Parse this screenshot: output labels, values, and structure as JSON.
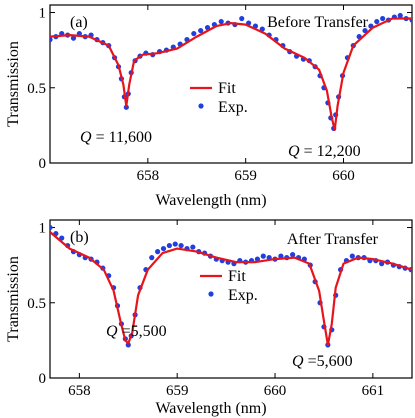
{
  "chart_data": [
    {
      "type": "line",
      "panel_label": "(a)",
      "title": "Before Transfer",
      "xlabel": "Wavelength (nm)",
      "ylabel": "Transmission",
      "xlim": [
        657.0,
        660.7
      ],
      "ylim": [
        0,
        1.05
      ],
      "xticks": [
        658,
        659,
        660
      ],
      "xtick_labels": [
        "658",
        "659",
        "660"
      ],
      "yticks": [
        0,
        0.5,
        1
      ],
      "ytick_labels": [
        "0",
        "0.5",
        "1"
      ],
      "legend": {
        "position": "center",
        "entries": [
          "Fit",
          "Exp."
        ]
      },
      "annotations": [
        {
          "text": "Q = 11,600",
          "prefix": "Q",
          "value": "= 11,600",
          "x": 657.8
        },
        {
          "text": "Q = 12,200",
          "prefix": "Q",
          "value": "= 12,200",
          "x": 659.9
        }
      ],
      "series": [
        {
          "name": "Fit",
          "style": "line",
          "color": "#e8141b",
          "x": [
            657.0,
            657.2,
            657.4,
            657.6,
            657.7,
            657.75,
            657.78,
            657.81,
            657.86,
            657.95,
            658.1,
            658.3,
            658.5,
            658.7,
            658.85,
            659.0,
            659.2,
            659.4,
            659.6,
            659.75,
            659.83,
            659.88,
            659.91,
            659.94,
            660.0,
            660.1,
            660.3,
            660.5,
            660.7
          ],
          "y": [
            0.84,
            0.85,
            0.84,
            0.78,
            0.65,
            0.52,
            0.38,
            0.52,
            0.68,
            0.72,
            0.73,
            0.76,
            0.84,
            0.91,
            0.93,
            0.92,
            0.86,
            0.76,
            0.7,
            0.62,
            0.48,
            0.3,
            0.22,
            0.38,
            0.6,
            0.78,
            0.9,
            0.96,
            0.96
          ]
        },
        {
          "name": "Exp.",
          "style": "scatter",
          "color": "#1f3fe0",
          "x": [
            657.0,
            657.06,
            657.12,
            657.18,
            657.24,
            657.3,
            657.36,
            657.42,
            657.48,
            657.54,
            657.6,
            657.66,
            657.7,
            657.73,
            657.76,
            657.78,
            657.8,
            657.83,
            657.87,
            657.92,
            657.98,
            658.05,
            658.12,
            658.19,
            658.26,
            658.33,
            658.4,
            658.47,
            658.54,
            658.61,
            658.68,
            658.75,
            658.82,
            658.89,
            658.96,
            659.03,
            659.1,
            659.17,
            659.24,
            659.31,
            659.38,
            659.45,
            659.52,
            659.59,
            659.65,
            659.71,
            659.76,
            659.8,
            659.84,
            659.87,
            659.9,
            659.92,
            659.95,
            659.99,
            660.04,
            660.1,
            660.16,
            660.22,
            660.28,
            660.34,
            660.4,
            660.46,
            660.52,
            660.58,
            660.64,
            660.7
          ],
          "y": [
            0.82,
            0.84,
            0.86,
            0.85,
            0.83,
            0.86,
            0.84,
            0.85,
            0.82,
            0.8,
            0.78,
            0.7,
            0.64,
            0.56,
            0.44,
            0.37,
            0.46,
            0.6,
            0.68,
            0.71,
            0.73,
            0.72,
            0.74,
            0.75,
            0.77,
            0.79,
            0.82,
            0.86,
            0.88,
            0.9,
            0.92,
            0.94,
            0.93,
            0.92,
            0.96,
            0.93,
            0.91,
            0.89,
            0.85,
            0.82,
            0.78,
            0.74,
            0.71,
            0.69,
            0.68,
            0.64,
            0.58,
            0.5,
            0.4,
            0.3,
            0.23,
            0.32,
            0.44,
            0.58,
            0.7,
            0.78,
            0.84,
            0.88,
            0.91,
            0.94,
            0.96,
            0.95,
            0.97,
            0.98,
            0.96,
            0.95
          ]
        }
      ]
    },
    {
      "type": "line",
      "panel_label": "(b)",
      "title": "After Transfer",
      "xlabel": "Wavelength (nm)",
      "ylabel": "Transmission",
      "xlim": [
        657.7,
        661.4
      ],
      "ylim": [
        0,
        1.05
      ],
      "xticks": [
        658,
        659,
        660,
        661
      ],
      "xtick_labels": [
        "658",
        "659",
        "660",
        "661"
      ],
      "yticks": [
        0,
        0.5,
        1
      ],
      "ytick_labels": [
        "0",
        "0.5",
        "1"
      ],
      "legend": {
        "position": "center",
        "entries": [
          "Fit",
          "Exp."
        ]
      },
      "annotations": [
        {
          "text": "Q =5,500",
          "prefix": "Q",
          "value": " =5,500",
          "x": 658.5
        },
        {
          "text": "Q =5,600",
          "prefix": "Q",
          "value": " =5,600",
          "x": 660.55
        }
      ],
      "series": [
        {
          "name": "Fit",
          "style": "line",
          "color": "#e8141b",
          "x": [
            657.7,
            657.9,
            658.1,
            658.25,
            658.35,
            658.42,
            658.47,
            658.5,
            658.54,
            658.6,
            658.7,
            658.85,
            659.0,
            659.2,
            659.4,
            659.6,
            659.8,
            660.0,
            660.2,
            660.35,
            660.45,
            660.5,
            660.54,
            660.58,
            660.62,
            660.7,
            660.85,
            661.0,
            661.2,
            661.4
          ],
          "y": [
            0.97,
            0.86,
            0.8,
            0.72,
            0.58,
            0.38,
            0.25,
            0.23,
            0.3,
            0.55,
            0.72,
            0.83,
            0.86,
            0.84,
            0.8,
            0.77,
            0.77,
            0.79,
            0.8,
            0.76,
            0.58,
            0.38,
            0.22,
            0.36,
            0.6,
            0.76,
            0.8,
            0.79,
            0.76,
            0.72
          ]
        },
        {
          "name": "Exp.",
          "style": "scatter",
          "color": "#1f3fe0",
          "x": [
            657.7,
            657.76,
            657.82,
            657.88,
            657.94,
            658.0,
            658.06,
            658.12,
            658.18,
            658.24,
            658.3,
            658.35,
            658.39,
            658.43,
            658.47,
            658.5,
            658.53,
            658.57,
            658.62,
            658.68,
            658.74,
            658.8,
            658.86,
            658.92,
            658.98,
            659.04,
            659.1,
            659.16,
            659.22,
            659.28,
            659.34,
            659.4,
            659.46,
            659.52,
            659.58,
            659.64,
            659.7,
            659.76,
            659.82,
            659.88,
            659.94,
            660.0,
            660.06,
            660.12,
            660.18,
            660.24,
            660.3,
            660.36,
            660.41,
            660.46,
            660.5,
            660.54,
            660.58,
            660.62,
            660.67,
            660.73,
            660.79,
            660.85,
            660.91,
            660.97,
            661.03,
            661.09,
            661.15,
            661.21,
            661.27,
            661.33,
            661.39
          ],
          "y": [
            1.0,
            0.96,
            0.93,
            0.88,
            0.84,
            0.82,
            0.8,
            0.79,
            0.77,
            0.73,
            0.68,
            0.6,
            0.48,
            0.36,
            0.26,
            0.22,
            0.28,
            0.42,
            0.6,
            0.72,
            0.8,
            0.84,
            0.86,
            0.88,
            0.89,
            0.88,
            0.86,
            0.87,
            0.84,
            0.83,
            0.81,
            0.79,
            0.78,
            0.77,
            0.76,
            0.78,
            0.77,
            0.78,
            0.79,
            0.81,
            0.8,
            0.79,
            0.81,
            0.8,
            0.82,
            0.8,
            0.79,
            0.75,
            0.64,
            0.5,
            0.34,
            0.22,
            0.32,
            0.55,
            0.72,
            0.78,
            0.81,
            0.8,
            0.8,
            0.78,
            0.78,
            0.76,
            0.77,
            0.75,
            0.74,
            0.73,
            0.72
          ]
        }
      ]
    }
  ]
}
